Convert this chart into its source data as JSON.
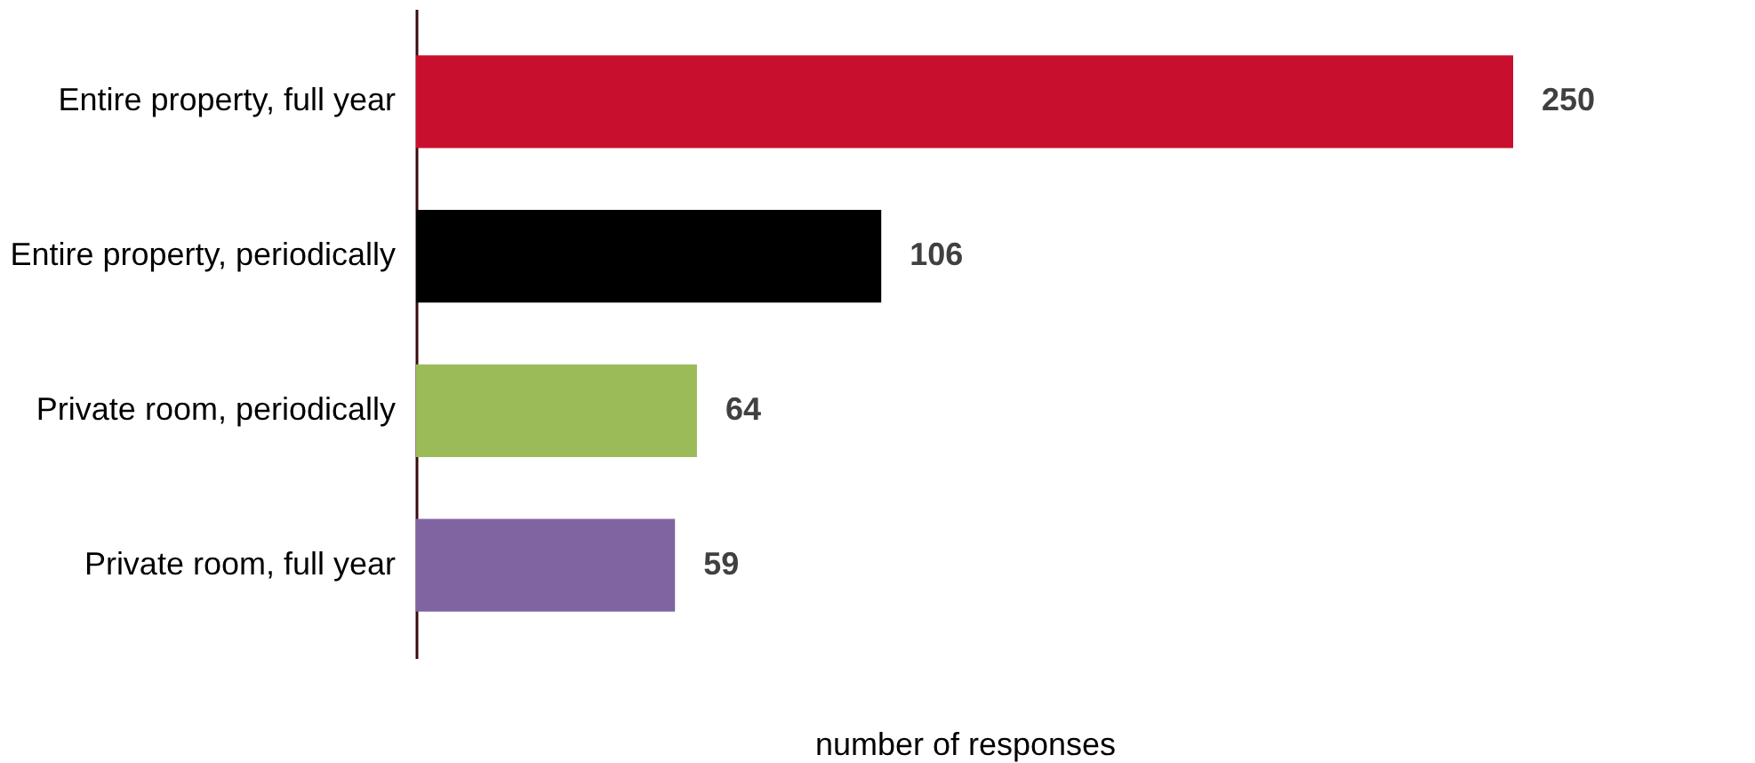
{
  "chart_data": {
    "type": "bar",
    "orientation": "horizontal",
    "xlabel": "number of responses",
    "categories": [
      "Entire property, full year",
      "Entire property, periodically",
      "Private room, periodically",
      "Private room, full year"
    ],
    "values": [
      250,
      106,
      64,
      59
    ],
    "colors": [
      "#c8102e",
      "#000000",
      "#9bbb59",
      "#8064a2"
    ],
    "data_labels": true
  }
}
